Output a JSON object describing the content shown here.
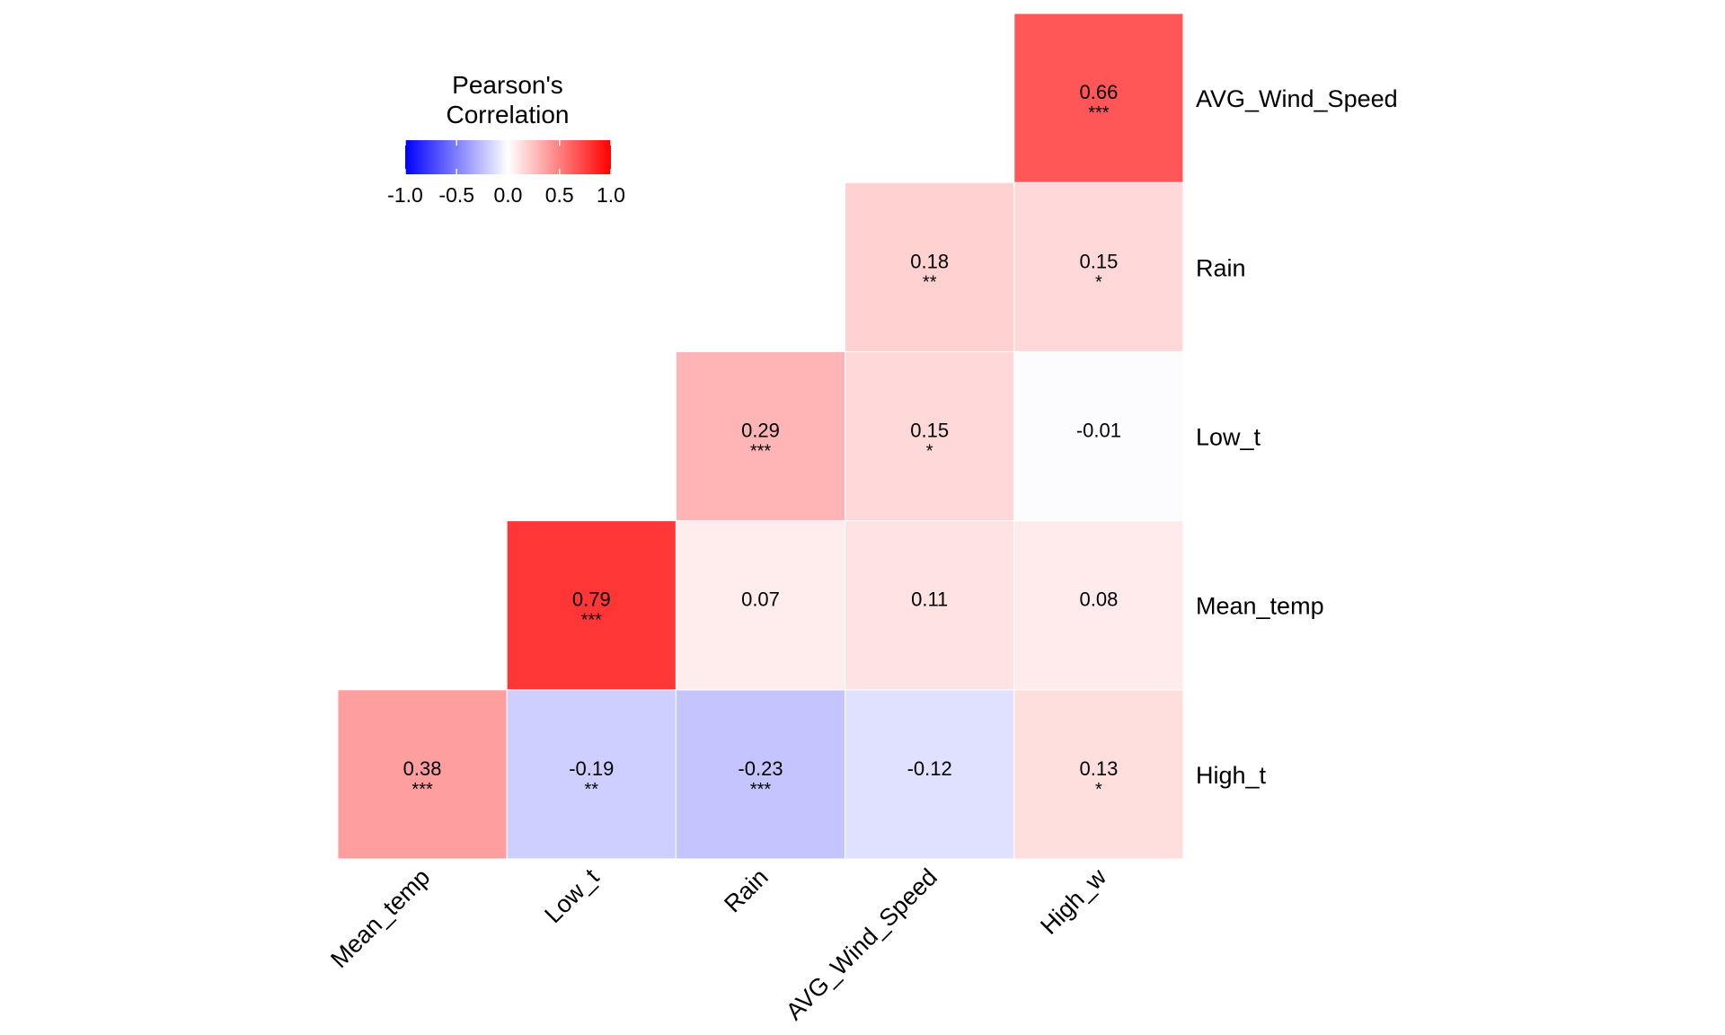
{
  "chart_data": {
    "type": "heatmap",
    "title": "",
    "x_categories": [
      "Mean_temp",
      "Low_t",
      "Rain",
      "AVG_Wind_Speed",
      "High_w"
    ],
    "y_categories": [
      "High_t",
      "Mean_temp",
      "Low_t",
      "Rain",
      "AVG_Wind_Speed"
    ],
    "cells": [
      {
        "x": "Mean_temp",
        "y": "High_t",
        "value": "0.38",
        "stars": "***"
      },
      {
        "x": "Low_t",
        "y": "High_t",
        "value": "-0.19",
        "stars": "**"
      },
      {
        "x": "Rain",
        "y": "High_t",
        "value": "-0.23",
        "stars": "***"
      },
      {
        "x": "AVG_Wind_Speed",
        "y": "High_t",
        "value": "-0.12",
        "stars": ""
      },
      {
        "x": "High_w",
        "y": "High_t",
        "value": "0.13",
        "stars": "*"
      },
      {
        "x": "Low_t",
        "y": "Mean_temp",
        "value": "0.79",
        "stars": "***"
      },
      {
        "x": "Rain",
        "y": "Mean_temp",
        "value": "0.07",
        "stars": ""
      },
      {
        "x": "AVG_Wind_Speed",
        "y": "Mean_temp",
        "value": "0.11",
        "stars": ""
      },
      {
        "x": "High_w",
        "y": "Mean_temp",
        "value": "0.08",
        "stars": ""
      },
      {
        "x": "Rain",
        "y": "Low_t",
        "value": "0.29",
        "stars": "***"
      },
      {
        "x": "AVG_Wind_Speed",
        "y": "Low_t",
        "value": "0.15",
        "stars": "*"
      },
      {
        "x": "High_w",
        "y": "Low_t",
        "value": "-0.01",
        "stars": ""
      },
      {
        "x": "AVG_Wind_Speed",
        "y": "Rain",
        "value": "0.18",
        "stars": "**"
      },
      {
        "x": "High_w",
        "y": "Rain",
        "value": "0.15",
        "stars": "*"
      },
      {
        "x": "High_w",
        "y": "AVG_Wind_Speed",
        "value": "0.66",
        "stars": "***"
      }
    ],
    "legend": {
      "title_lines": [
        "Pearson's",
        "Correlation"
      ],
      "ticks": [
        "-1.0",
        "-0.5",
        "0.0",
        "0.5",
        "1.0"
      ],
      "range": [
        -1,
        1
      ],
      "placement": "top-left"
    },
    "colors": {
      "low": "#0000ff",
      "mid": "#ffffff",
      "high": "#ff0000",
      "cell_border": "#ffffff"
    },
    "grid": false
  }
}
